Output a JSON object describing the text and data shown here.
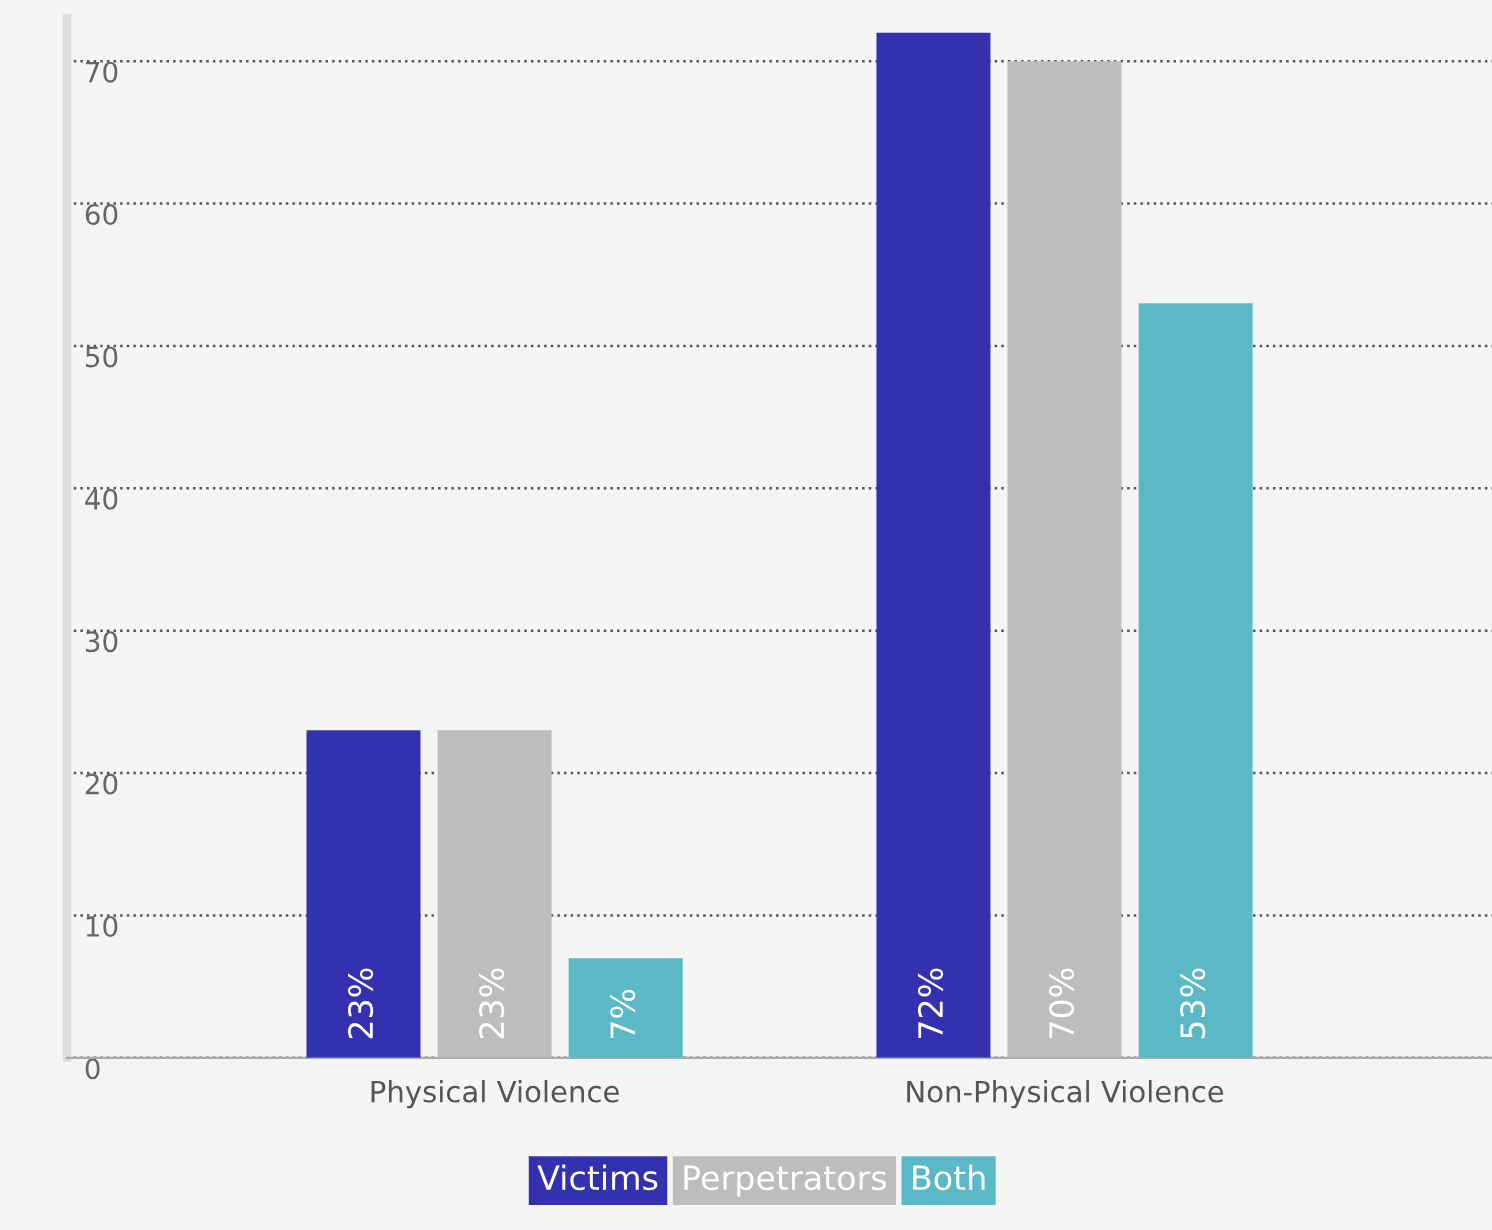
{
  "chart_data": {
    "type": "bar",
    "categories": [
      "Physical Violence",
      "Non-Physical Violence"
    ],
    "series": [
      {
        "name": "Victims",
        "color": "#3431b0",
        "values": [
          23,
          72
        ],
        "value_labels": [
          "23%",
          "72%"
        ]
      },
      {
        "name": "Perpetrators",
        "color": "#bdbdbd",
        "values": [
          23,
          70
        ],
        "value_labels": [
          "23%",
          "70%"
        ]
      },
      {
        "name": "Both",
        "color": "#5bb8c6",
        "values": [
          7,
          53
        ],
        "value_labels": [
          "7%",
          "53%"
        ]
      }
    ],
    "ylim": [
      0,
      73
    ],
    "yticks": [
      0,
      10,
      20,
      30,
      40,
      50,
      60,
      70
    ],
    "grid": "y",
    "legend": "bottom"
  }
}
